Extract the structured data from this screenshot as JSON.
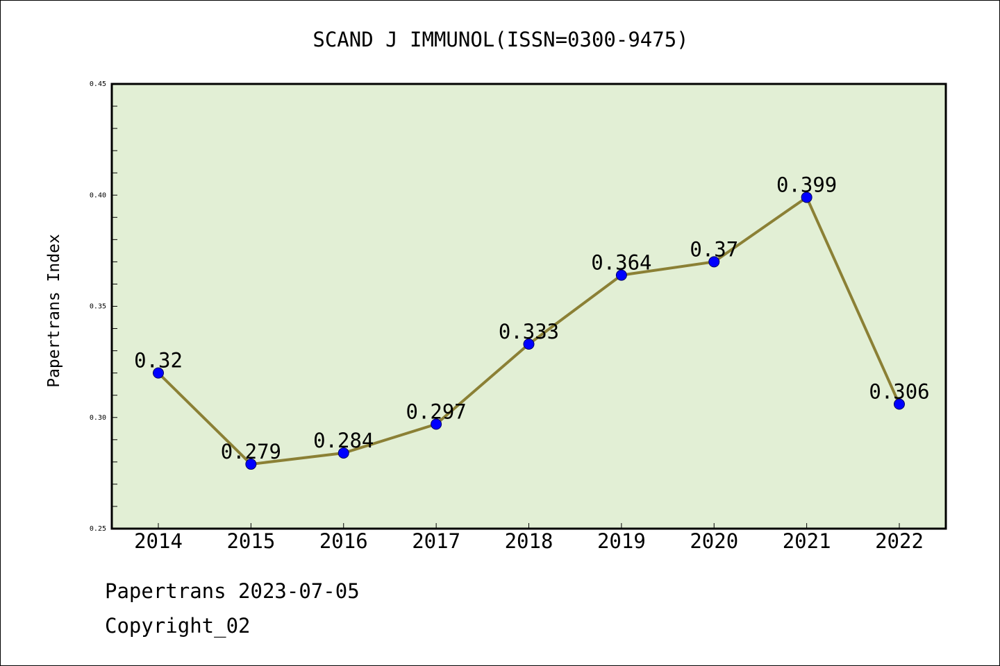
{
  "chart_data": {
    "type": "line",
    "title": "SCAND J IMMUNOL(ISSN=0300-9475)",
    "xlabel": "",
    "ylabel": "Papertrans Index",
    "categories": [
      "2014",
      "2015",
      "2016",
      "2017",
      "2018",
      "2019",
      "2020",
      "2021",
      "2022"
    ],
    "values": [
      0.32,
      0.279,
      0.284,
      0.297,
      0.333,
      0.364,
      0.37,
      0.399,
      0.306
    ],
    "value_labels": [
      "0.32",
      "0.279",
      "0.284",
      "0.297",
      "0.333",
      "0.364",
      "0.37",
      "0.399",
      "0.306"
    ],
    "ylim": [
      0.25,
      0.45
    ],
    "yticks": [
      "0.25",
      "0.30",
      "0.35",
      "0.40",
      "0.45"
    ],
    "grid": false,
    "legend": "none",
    "colors": {
      "line": "#8B8035",
      "marker": "#0000FF",
      "plot_background": "#E2EFD5",
      "frame": "#000000"
    }
  },
  "footer": {
    "line1": "Papertrans 2023-07-05",
    "line2": "Copyright_02"
  }
}
